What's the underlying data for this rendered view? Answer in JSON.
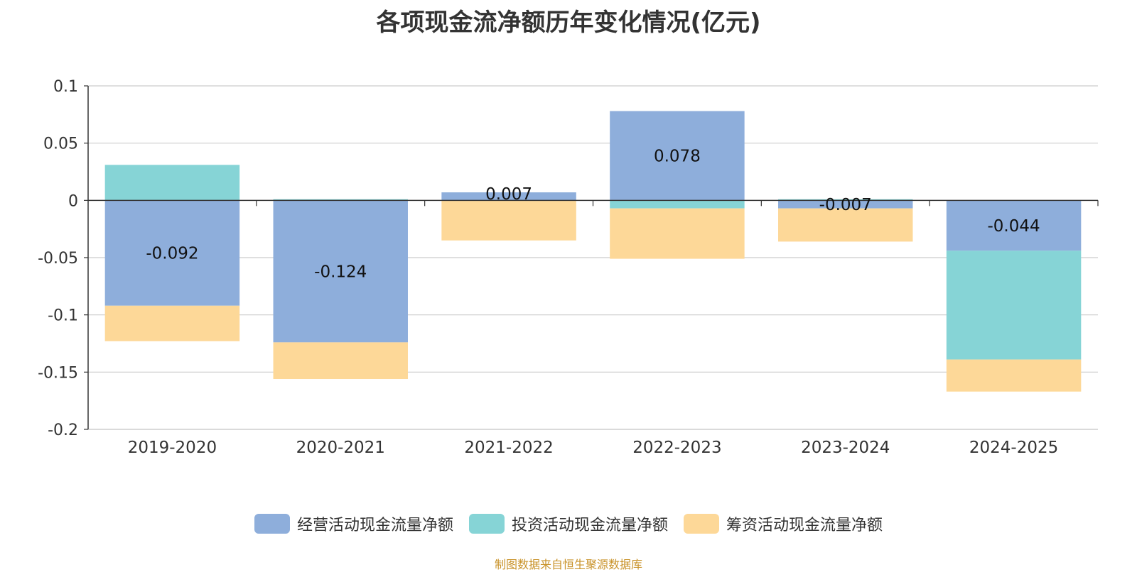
{
  "chart_data": {
    "type": "bar",
    "stacked": true,
    "title": "各项现金流净额历年变化情况(亿元)",
    "xlabel": "",
    "ylabel": "",
    "ylim": [
      -0.2,
      0.1
    ],
    "yticks": [
      0.1,
      0.05,
      0,
      -0.05,
      -0.1,
      -0.15,
      -0.2
    ],
    "ytick_labels": [
      "0.1",
      "0.05",
      "0",
      "-0.05",
      "-0.1",
      "-0.15",
      "-0.2"
    ],
    "grid": true,
    "legend_position": "bottom",
    "categories": [
      "2019-2020",
      "2020-2021",
      "2021-2022",
      "2022-2023",
      "2023-2024",
      "2024-2025"
    ],
    "series": [
      {
        "name": "经营活动现金流量净额",
        "color": "#8eaedb",
        "values": [
          -0.092,
          -0.124,
          0.007,
          0.078,
          -0.007,
          -0.044
        ],
        "labels": [
          "-0.092",
          "-0.124",
          "0.007",
          "0.078",
          "-0.007",
          "-0.044"
        ]
      },
      {
        "name": "投资活动现金流量净额",
        "color": "#86d4d6",
        "values": [
          0.031,
          0.001,
          0.0,
          -0.007,
          0.001,
          -0.095
        ],
        "labels": null
      },
      {
        "name": "筹资活动现金流量净额",
        "color": "#fdd898",
        "values": [
          -0.031,
          -0.032,
          -0.035,
          -0.044,
          -0.029,
          -0.028
        ],
        "labels": null
      }
    ]
  },
  "footer": {
    "source": "制图数据来自恒生聚源数据库"
  }
}
